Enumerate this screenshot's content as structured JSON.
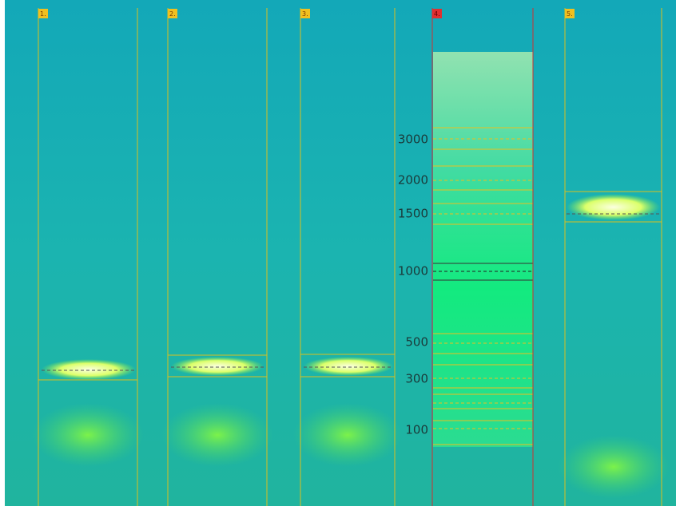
{
  "lanes": [
    {
      "label": "1."
    },
    {
      "label": "2."
    },
    {
      "label": "3."
    },
    {
      "label": "4."
    },
    {
      "label": "5."
    }
  ],
  "ladder": {
    "markers": [
      3000,
      2000,
      1500,
      1000,
      500,
      300,
      100
    ]
  }
}
